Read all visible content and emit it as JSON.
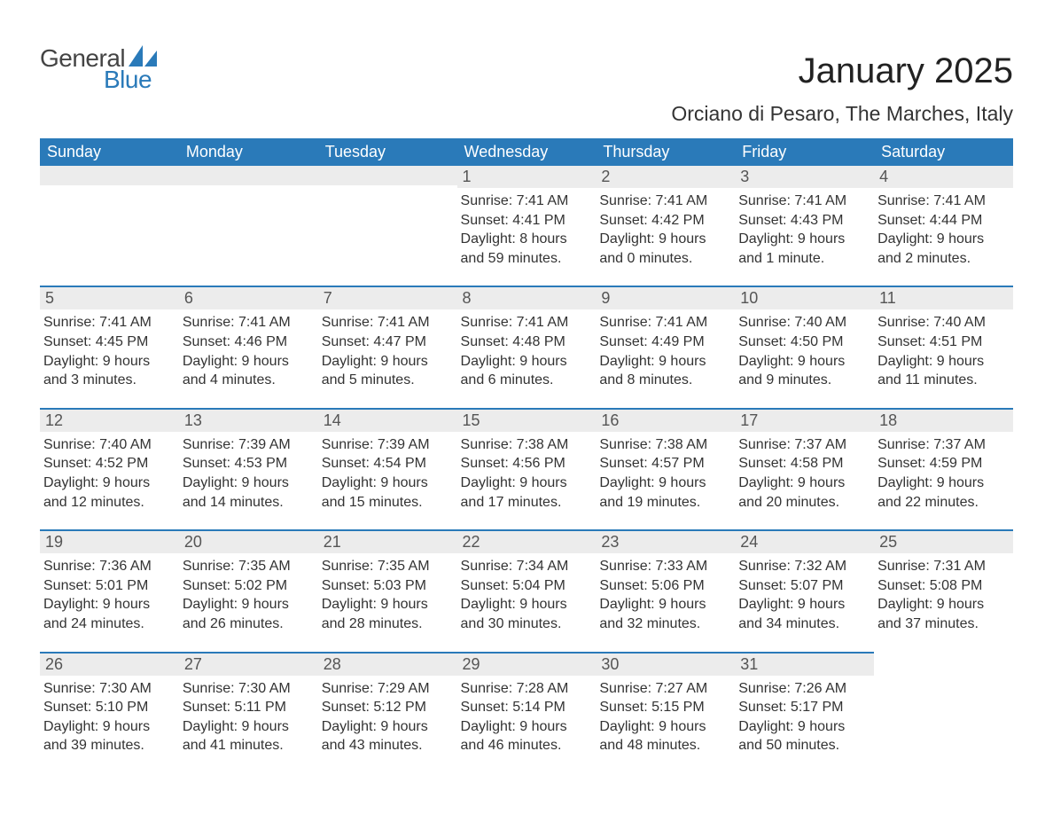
{
  "logo": {
    "text_general": "General",
    "text_blue": "Blue",
    "accent_color": "#2a7ab9",
    "text_color": "#444444"
  },
  "heading": {
    "month_year": "January 2025",
    "location": "Orciano di Pesaro, The Marches, Italy"
  },
  "colors": {
    "header_row_bg": "#2a7ab9",
    "header_row_text": "#ffffff",
    "daynum_bg": "#ececec",
    "week_divider": "#2a7ab9",
    "body_text": "#333333"
  },
  "days_of_week": [
    "Sunday",
    "Monday",
    "Tuesday",
    "Wednesday",
    "Thursday",
    "Friday",
    "Saturday"
  ],
  "weeks": [
    [
      {
        "empty": true
      },
      {
        "empty": true
      },
      {
        "empty": true
      },
      {
        "day": "1",
        "lines": [
          "Sunrise: 7:41 AM",
          "Sunset: 4:41 PM",
          "Daylight: 8 hours",
          "and 59 minutes."
        ]
      },
      {
        "day": "2",
        "lines": [
          "Sunrise: 7:41 AM",
          "Sunset: 4:42 PM",
          "Daylight: 9 hours",
          "and 0 minutes."
        ]
      },
      {
        "day": "3",
        "lines": [
          "Sunrise: 7:41 AM",
          "Sunset: 4:43 PM",
          "Daylight: 9 hours",
          "and 1 minute."
        ]
      },
      {
        "day": "4",
        "lines": [
          "Sunrise: 7:41 AM",
          "Sunset: 4:44 PM",
          "Daylight: 9 hours",
          "and 2 minutes."
        ]
      }
    ],
    [
      {
        "day": "5",
        "lines": [
          "Sunrise: 7:41 AM",
          "Sunset: 4:45 PM",
          "Daylight: 9 hours",
          "and 3 minutes."
        ]
      },
      {
        "day": "6",
        "lines": [
          "Sunrise: 7:41 AM",
          "Sunset: 4:46 PM",
          "Daylight: 9 hours",
          "and 4 minutes."
        ]
      },
      {
        "day": "7",
        "lines": [
          "Sunrise: 7:41 AM",
          "Sunset: 4:47 PM",
          "Daylight: 9 hours",
          "and 5 minutes."
        ]
      },
      {
        "day": "8",
        "lines": [
          "Sunrise: 7:41 AM",
          "Sunset: 4:48 PM",
          "Daylight: 9 hours",
          "and 6 minutes."
        ]
      },
      {
        "day": "9",
        "lines": [
          "Sunrise: 7:41 AM",
          "Sunset: 4:49 PM",
          "Daylight: 9 hours",
          "and 8 minutes."
        ]
      },
      {
        "day": "10",
        "lines": [
          "Sunrise: 7:40 AM",
          "Sunset: 4:50 PM",
          "Daylight: 9 hours",
          "and 9 minutes."
        ]
      },
      {
        "day": "11",
        "lines": [
          "Sunrise: 7:40 AM",
          "Sunset: 4:51 PM",
          "Daylight: 9 hours",
          "and 11 minutes."
        ]
      }
    ],
    [
      {
        "day": "12",
        "lines": [
          "Sunrise: 7:40 AM",
          "Sunset: 4:52 PM",
          "Daylight: 9 hours",
          "and 12 minutes."
        ]
      },
      {
        "day": "13",
        "lines": [
          "Sunrise: 7:39 AM",
          "Sunset: 4:53 PM",
          "Daylight: 9 hours",
          "and 14 minutes."
        ]
      },
      {
        "day": "14",
        "lines": [
          "Sunrise: 7:39 AM",
          "Sunset: 4:54 PM",
          "Daylight: 9 hours",
          "and 15 minutes."
        ]
      },
      {
        "day": "15",
        "lines": [
          "Sunrise: 7:38 AM",
          "Sunset: 4:56 PM",
          "Daylight: 9 hours",
          "and 17 minutes."
        ]
      },
      {
        "day": "16",
        "lines": [
          "Sunrise: 7:38 AM",
          "Sunset: 4:57 PM",
          "Daylight: 9 hours",
          "and 19 minutes."
        ]
      },
      {
        "day": "17",
        "lines": [
          "Sunrise: 7:37 AM",
          "Sunset: 4:58 PM",
          "Daylight: 9 hours",
          "and 20 minutes."
        ]
      },
      {
        "day": "18",
        "lines": [
          "Sunrise: 7:37 AM",
          "Sunset: 4:59 PM",
          "Daylight: 9 hours",
          "and 22 minutes."
        ]
      }
    ],
    [
      {
        "day": "19",
        "lines": [
          "Sunrise: 7:36 AM",
          "Sunset: 5:01 PM",
          "Daylight: 9 hours",
          "and 24 minutes."
        ]
      },
      {
        "day": "20",
        "lines": [
          "Sunrise: 7:35 AM",
          "Sunset: 5:02 PM",
          "Daylight: 9 hours",
          "and 26 minutes."
        ]
      },
      {
        "day": "21",
        "lines": [
          "Sunrise: 7:35 AM",
          "Sunset: 5:03 PM",
          "Daylight: 9 hours",
          "and 28 minutes."
        ]
      },
      {
        "day": "22",
        "lines": [
          "Sunrise: 7:34 AM",
          "Sunset: 5:04 PM",
          "Daylight: 9 hours",
          "and 30 minutes."
        ]
      },
      {
        "day": "23",
        "lines": [
          "Sunrise: 7:33 AM",
          "Sunset: 5:06 PM",
          "Daylight: 9 hours",
          "and 32 minutes."
        ]
      },
      {
        "day": "24",
        "lines": [
          "Sunrise: 7:32 AM",
          "Sunset: 5:07 PM",
          "Daylight: 9 hours",
          "and 34 minutes."
        ]
      },
      {
        "day": "25",
        "lines": [
          "Sunrise: 7:31 AM",
          "Sunset: 5:08 PM",
          "Daylight: 9 hours",
          "and 37 minutes."
        ]
      }
    ],
    [
      {
        "day": "26",
        "lines": [
          "Sunrise: 7:30 AM",
          "Sunset: 5:10 PM",
          "Daylight: 9 hours",
          "and 39 minutes."
        ]
      },
      {
        "day": "27",
        "lines": [
          "Sunrise: 7:30 AM",
          "Sunset: 5:11 PM",
          "Daylight: 9 hours",
          "and 41 minutes."
        ]
      },
      {
        "day": "28",
        "lines": [
          "Sunrise: 7:29 AM",
          "Sunset: 5:12 PM",
          "Daylight: 9 hours",
          "and 43 minutes."
        ]
      },
      {
        "day": "29",
        "lines": [
          "Sunrise: 7:28 AM",
          "Sunset: 5:14 PM",
          "Daylight: 9 hours",
          "and 46 minutes."
        ]
      },
      {
        "day": "30",
        "lines": [
          "Sunrise: 7:27 AM",
          "Sunset: 5:15 PM",
          "Daylight: 9 hours",
          "and 48 minutes."
        ]
      },
      {
        "day": "31",
        "lines": [
          "Sunrise: 7:26 AM",
          "Sunset: 5:17 PM",
          "Daylight: 9 hours",
          "and 50 minutes."
        ]
      },
      {
        "empty": true
      }
    ]
  ]
}
